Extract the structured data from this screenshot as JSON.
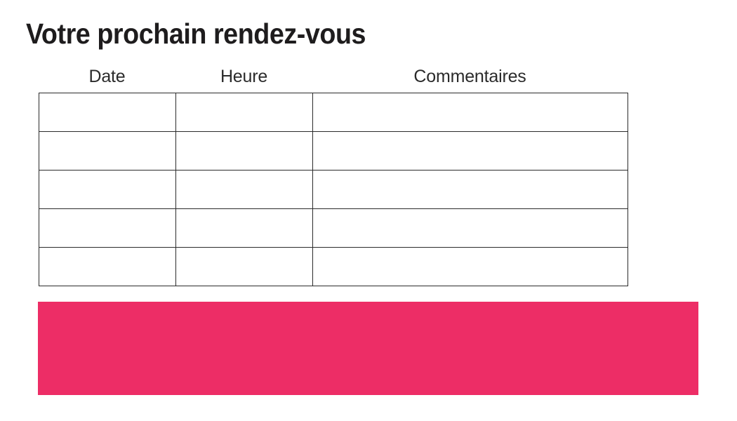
{
  "page": {
    "title": "Votre prochain rendez-vous",
    "background": "#FFFFFF"
  },
  "appointments_table": {
    "headers": [
      "Date",
      "Heure",
      "Commentaires"
    ],
    "row_count": 5,
    "rows": [
      [
        "",
        "",
        ""
      ],
      [
        "",
        "",
        ""
      ],
      [
        "",
        "",
        ""
      ],
      [
        "",
        "",
        ""
      ],
      [
        "",
        "",
        ""
      ]
    ]
  },
  "banner": {
    "text": "",
    "color": "#ED2D66"
  },
  "colors": {
    "title_text": "#1E1C1D",
    "header_text": "#2B2B2B",
    "table_border": "#2B2B2B",
    "accent_pink": "#ED2D66",
    "background": "#FFFFFF"
  }
}
